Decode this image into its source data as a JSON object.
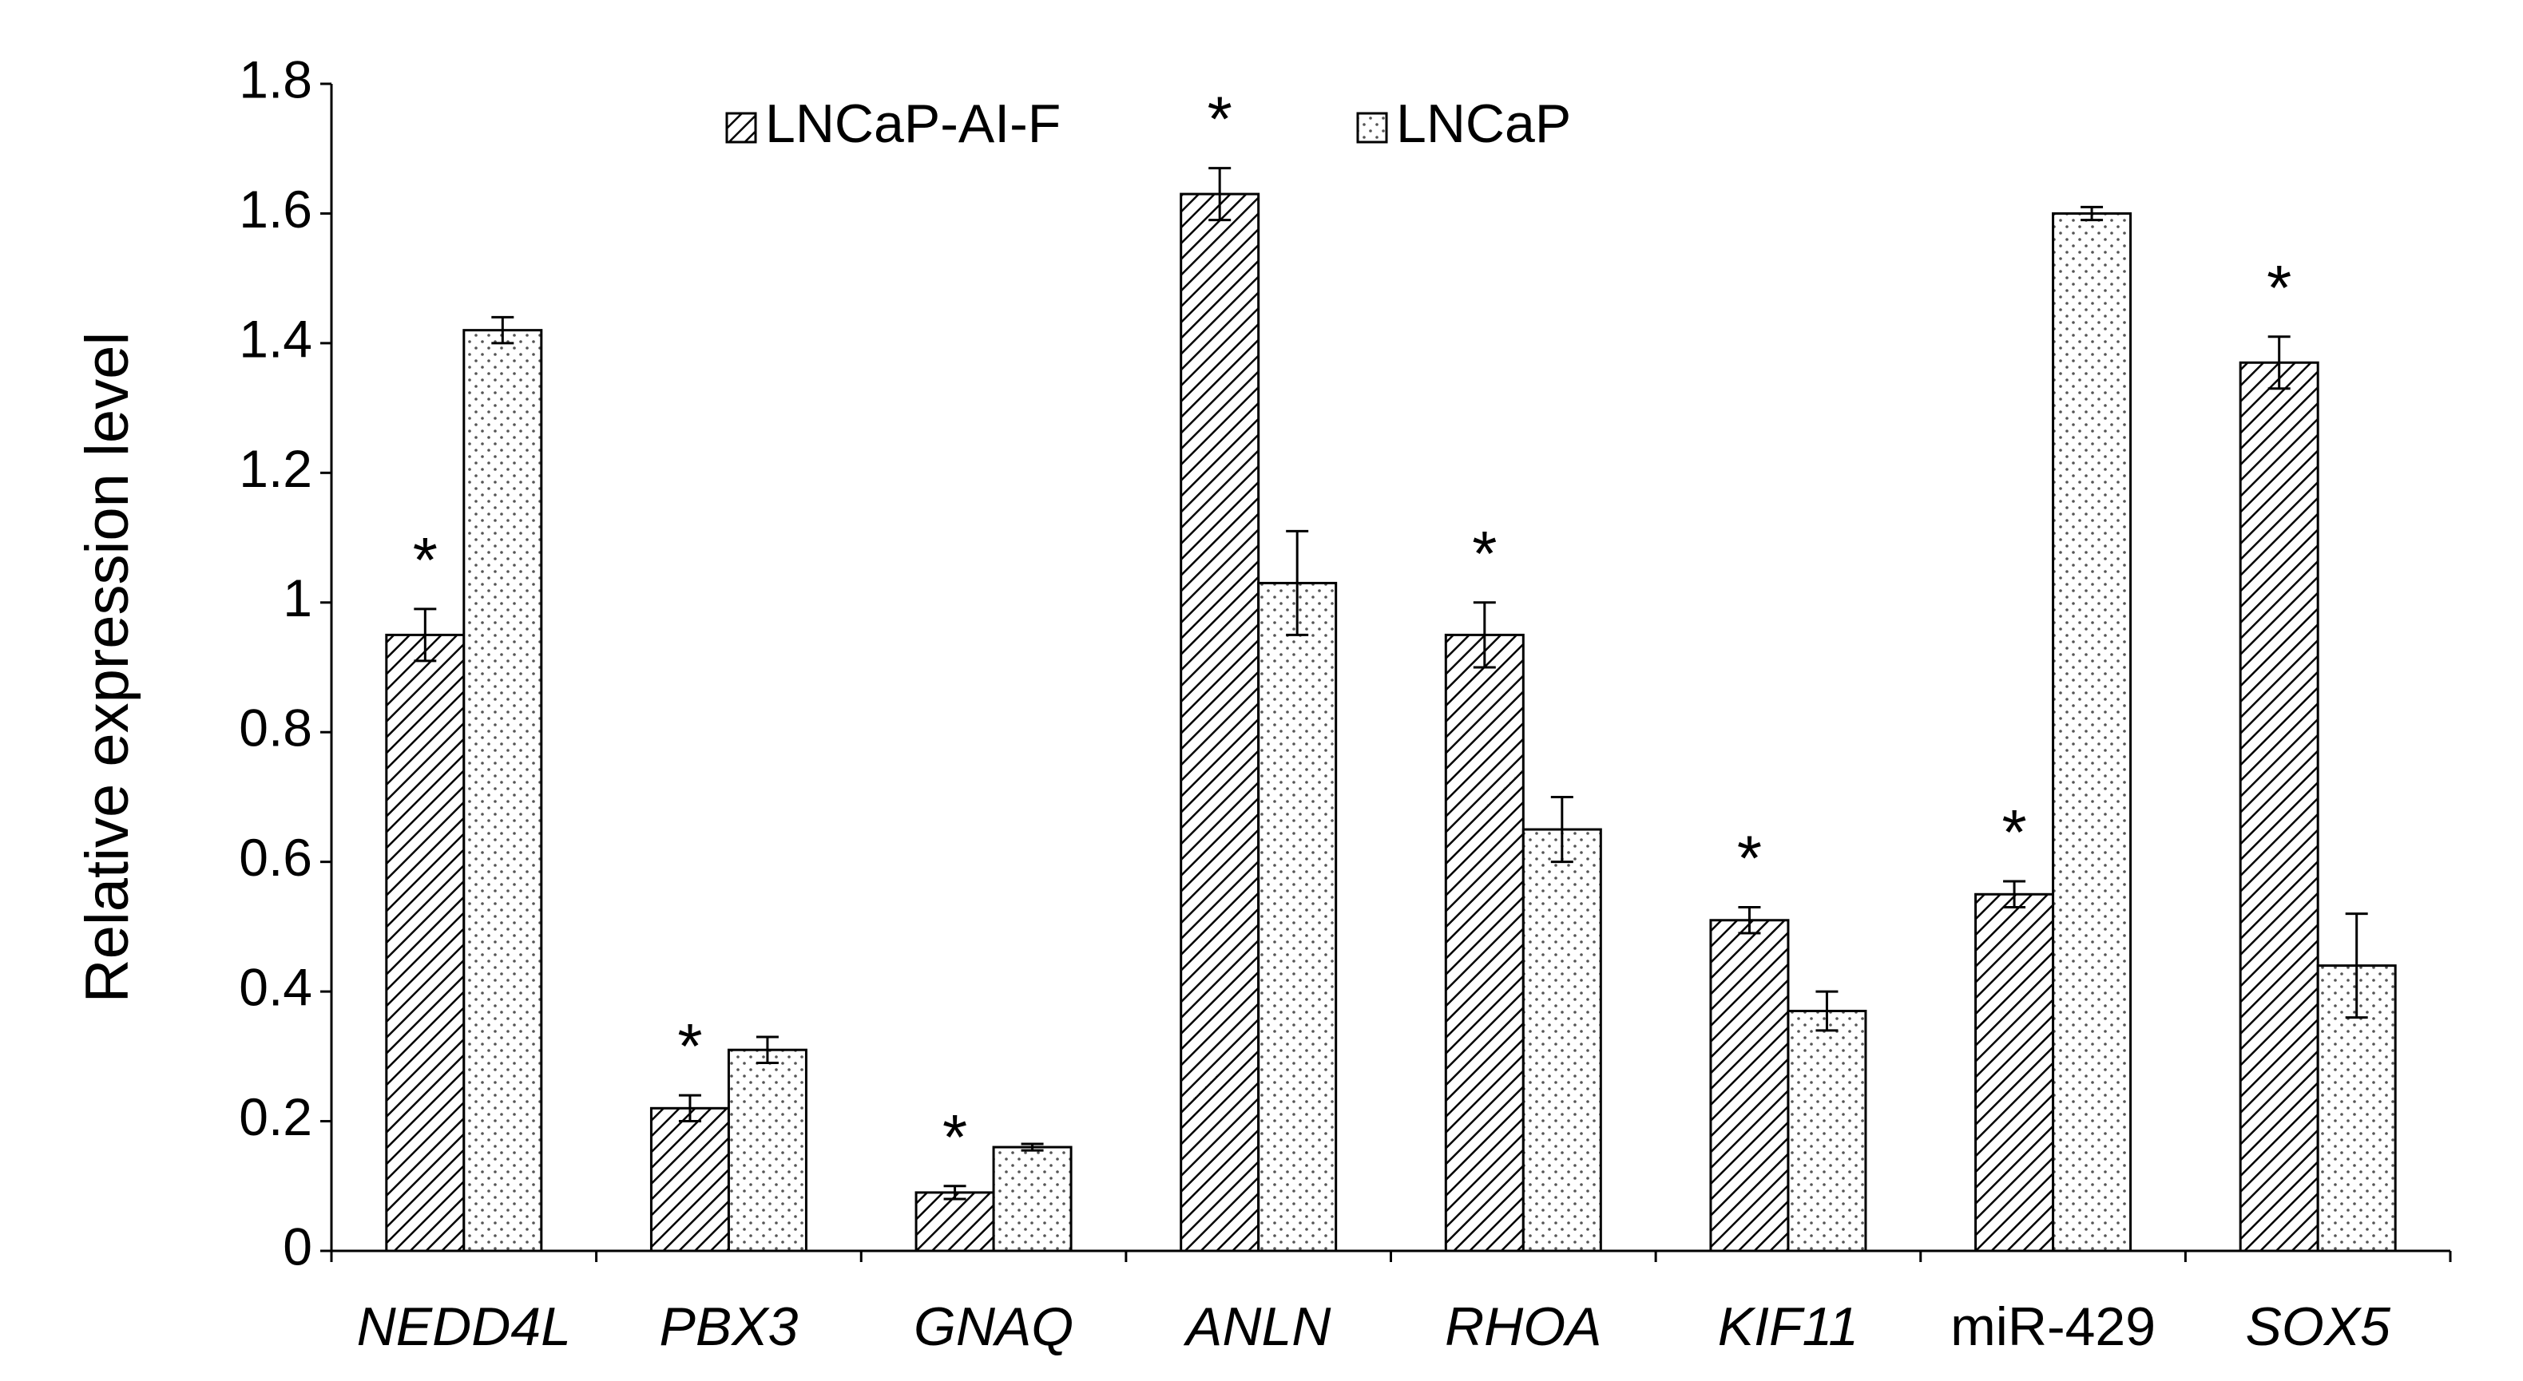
{
  "chart_data": {
    "type": "bar",
    "y_label": "Relative expression level",
    "categories": [
      "NEDD4L",
      "PBX3",
      "GNAQ",
      "ANLN",
      "RHOA",
      "KIF11",
      "miR-429",
      "SOX5"
    ],
    "series": [
      {
        "name": "LNCaP-AI-F",
        "pattern": "hatch",
        "color": "#000000",
        "values": [
          0.95,
          0.22,
          0.09,
          1.63,
          0.95,
          0.51,
          0.55,
          1.37
        ],
        "errors": [
          0.04,
          0.02,
          0.01,
          0.04,
          0.05,
          0.02,
          0.02,
          0.04
        ]
      },
      {
        "name": "LNCaP",
        "pattern": "dots",
        "color": "#000000",
        "values": [
          1.42,
          0.31,
          0.16,
          1.03,
          0.65,
          0.37,
          1.6,
          0.44
        ],
        "errors": [
          0.02,
          0.02,
          0.005,
          0.08,
          0.05,
          0.03,
          0.01,
          0.08
        ]
      }
    ],
    "significance": [
      "*",
      "*",
      "*",
      "*",
      "*",
      "*",
      "*",
      "*"
    ],
    "ylim": [
      0,
      1.8
    ],
    "yticks": [
      0,
      0.2,
      0.4,
      0.6,
      0.8,
      1,
      1.2,
      1.4,
      1.6,
      1.8
    ],
    "grid": false
  }
}
